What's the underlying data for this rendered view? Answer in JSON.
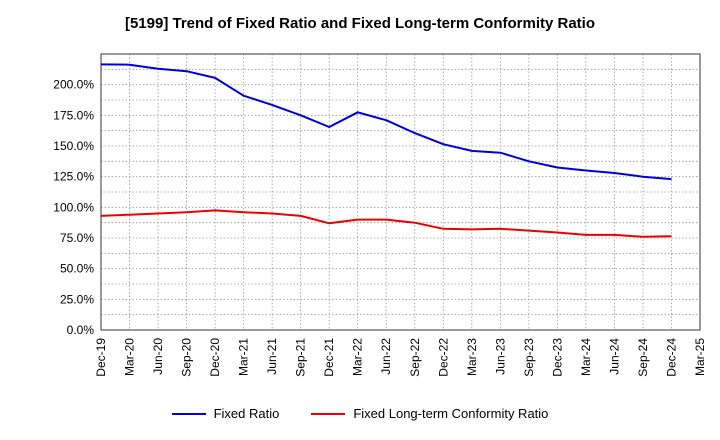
{
  "chart_data": {
    "type": "line",
    "title": "[5199]  Trend of Fixed Ratio and Fixed Long-term Conformity Ratio",
    "xlabel": "",
    "ylabel": "",
    "x": [
      "Dec-19",
      "Mar-20",
      "Jun-20",
      "Sep-20",
      "Dec-20",
      "Mar-21",
      "Jun-21",
      "Sep-21",
      "Dec-21",
      "Mar-22",
      "Jun-22",
      "Sep-22",
      "Dec-22",
      "Mar-23",
      "Jun-23",
      "Sep-23",
      "Dec-23",
      "Mar-24",
      "Jun-24",
      "Sep-24",
      "Dec-24",
      "Mar-25"
    ],
    "ylim": [
      0,
      225
    ],
    "yticks": [
      "0.0%",
      "25.0%",
      "50.0%",
      "75.0%",
      "100.0%",
      "125.0%",
      "150.0%",
      "175.0%",
      "200.0%"
    ],
    "grid": true,
    "legend_position": "bottom",
    "series": [
      {
        "name": "Fixed Ratio",
        "color": "#0000dd",
        "values": [
          216.5,
          216.3,
          213.0,
          211.0,
          205.5,
          191.0,
          183.5,
          175.0,
          165.5,
          177.5,
          171.0,
          160.5,
          151.5,
          146.0,
          144.5,
          137.5,
          132.5,
          130.0,
          128.0,
          125.0,
          123.0,
          null
        ]
      },
      {
        "name": "Fixed Long-term Conformity Ratio",
        "color": "#ee0000",
        "values": [
          93.0,
          94.0,
          95.0,
          96.0,
          97.5,
          96.0,
          95.0,
          93.0,
          87.0,
          90.0,
          90.0,
          87.5,
          82.5,
          82.0,
          82.5,
          81.0,
          79.5,
          77.5,
          77.5,
          76.0,
          76.5,
          null
        ]
      }
    ]
  }
}
